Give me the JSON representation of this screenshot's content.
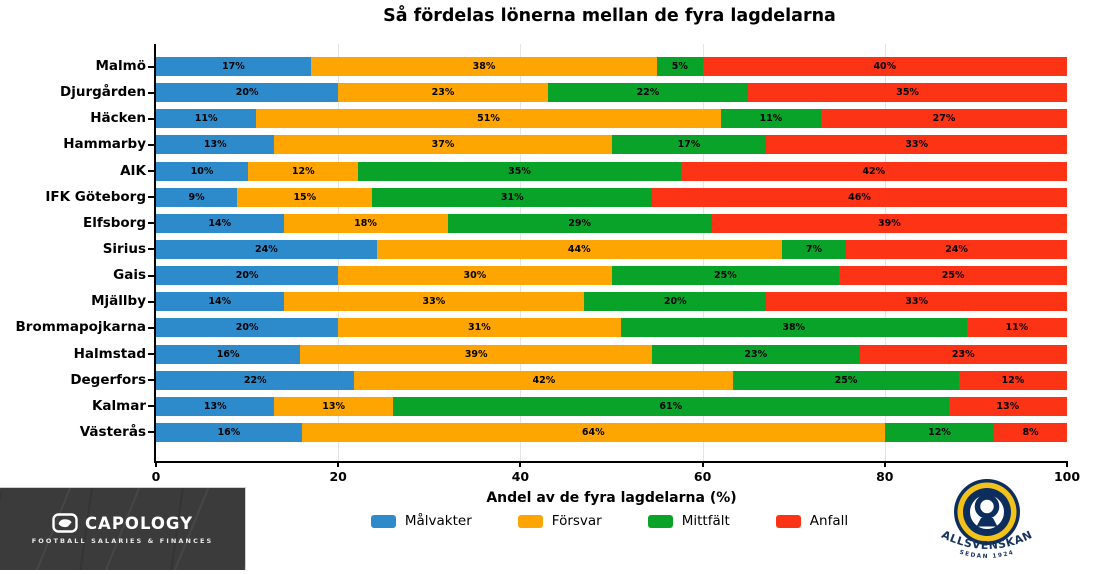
{
  "title": "Så fördelas lönerna mellan de fyra lagdelarna",
  "chart_data": {
    "type": "bar",
    "orientation": "horizontal-stacked",
    "categories": [
      "Malmö",
      "Djurgården",
      "Häcken",
      "Hammarby",
      "AIK",
      "IFK Göteborg",
      "Elfsborg",
      "Sirius",
      "Gais",
      "Mjällby",
      "Brommapojkarna",
      "Halmstad",
      "Degerfors",
      "Kalmar",
      "Västerås"
    ],
    "series": [
      {
        "name": "Målvakter",
        "color": "#2d8bcb",
        "values": [
          17,
          20,
          11,
          13,
          10,
          9,
          14,
          24,
          20,
          14,
          20,
          16,
          22,
          13,
          16
        ]
      },
      {
        "name": "Försvar",
        "color": "#ffa502",
        "values": [
          38,
          23,
          51,
          37,
          12,
          15,
          18,
          44,
          30,
          33,
          31,
          39,
          42,
          13,
          64
        ]
      },
      {
        "name": "Mittfält",
        "color": "#0aa32a",
        "values": [
          5,
          22,
          11,
          17,
          35,
          31,
          29,
          7,
          25,
          20,
          38,
          23,
          25,
          61,
          12
        ]
      },
      {
        "name": "Anfall",
        "color": "#fc3314",
        "values": [
          40,
          35,
          27,
          33,
          42,
          46,
          39,
          24,
          25,
          33,
          11,
          23,
          12,
          13,
          8
        ]
      }
    ],
    "xlabel": "Andel av de fyra lagdelarna (%)",
    "xlim": [
      0,
      100
    ],
    "xticks": [
      0,
      20,
      40,
      60,
      80,
      100
    ],
    "value_suffix": "%",
    "grid": true,
    "legend_position": "bottom"
  },
  "branding": {
    "capology": {
      "name": "CAPOLOGY",
      "tagline": "FOOTBALL SALARIES & FINANCES"
    },
    "allsvenskan": {
      "name": "ALLSVENSKAN",
      "subtitle": "SEDAN 1924"
    }
  }
}
